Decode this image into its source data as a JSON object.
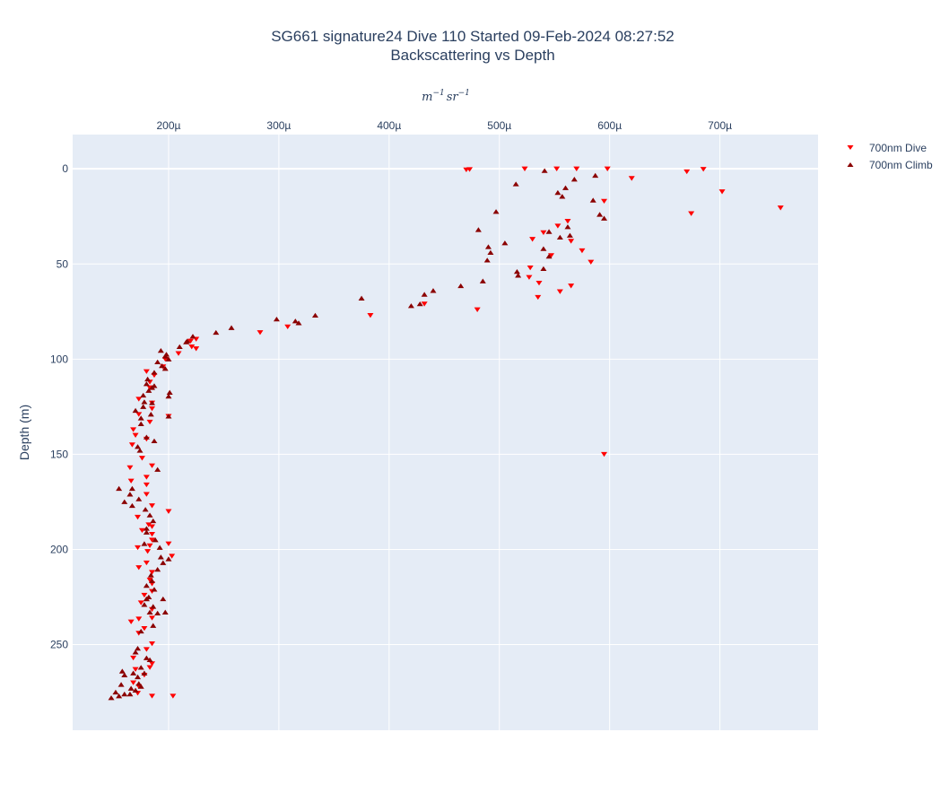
{
  "chart_data": {
    "type": "scatter",
    "title": "SG661 signature24 Dive 110 Started 09-Feb-2024 08:27:52",
    "subtitle": "Backscattering vs Depth",
    "xlabel": "m^{-1}sr^{-1}",
    "xlabel_parts": {
      "m": "m",
      "m_exp": "−1",
      "sr": "sr",
      "sr_exp": "−1"
    },
    "ylabel": "Depth (m)",
    "xaxis_side": "top",
    "yaxis_reversed": true,
    "xlim": [
      0.000113,
      0.000789
    ],
    "ylim": [
      295,
      -18
    ],
    "xticks": [
      0.0002,
      0.0003,
      0.0004,
      0.0005,
      0.0006,
      0.0007
    ],
    "xtick_labels": [
      "200µ",
      "300µ",
      "400µ",
      "500µ",
      "600µ",
      "700µ"
    ],
    "yticks": [
      0,
      50,
      100,
      150,
      200,
      250
    ],
    "ytick_labels": [
      "0",
      "50",
      "100",
      "150",
      "200",
      "250"
    ],
    "grid": true,
    "legend_position": "top-right",
    "series": [
      {
        "name": "700nm Dive",
        "marker": "triangle-down",
        "color": "#ff0000",
        "x": [
          0.00047,
          0.000473,
          0.000523,
          0.000552,
          0.00057,
          0.000598,
          0.00067,
          0.000685,
          0.00062,
          0.000702,
          0.000595,
          0.000755,
          0.000674,
          0.000562,
          0.000553,
          0.00054,
          0.00053,
          0.000565,
          0.000575,
          0.000547,
          0.000583,
          0.000528,
          0.000527,
          0.000536,
          0.000565,
          0.000555,
          0.000535,
          0.000432,
          0.00048,
          0.000383,
          0.000283,
          0.000308,
          0.000225,
          0.000221,
          0.00022,
          0.000225,
          0.000209,
          0.000197,
          0.000195,
          0.00018,
          0.000187,
          0.000183,
          0.000183,
          0.000173,
          0.000185,
          0.000185,
          0.000173,
          0.0002,
          0.000183,
          0.000168,
          0.00017,
          0.00018,
          0.000167,
          0.000176,
          0.000165,
          0.000185,
          0.00018,
          0.000166,
          0.00018,
          0.00018,
          0.000185,
          0.000172,
          0.000182,
          0.000185,
          0.000176,
          0.0002,
          0.000185,
          0.000185,
          0.000172,
          0.000181,
          0.000183,
          0.0002,
          0.000203,
          0.00018,
          0.000173,
          0.000185,
          0.000183,
          0.000185,
          0.000185,
          0.000178,
          0.000175,
          0.000185,
          0.000185,
          0.000173,
          0.000166,
          0.000178,
          0.000173,
          0.000185,
          0.00018,
          0.000168,
          0.000183,
          0.00017,
          0.000185,
          0.000178,
          0.000168,
          0.000173,
          0.000172,
          0.000185,
          0.000204,
          0.000595
        ],
        "y": [
          0.5,
          0.3,
          0.0,
          0.0,
          0.0,
          0.0,
          1.5,
          0.2,
          5.0,
          12.0,
          17.0,
          20.5,
          23.5,
          27.5,
          30.0,
          33.5,
          37.0,
          38.0,
          43.0,
          45.5,
          49.0,
          52.0,
          57.0,
          60.0,
          61.5,
          64.5,
          67.5,
          71.0,
          74.0,
          77.0,
          86.0,
          83.0,
          89.5,
          93.5,
          90.5,
          94.5,
          97.0,
          100.0,
          104.0,
          106.5,
          108.5,
          112.0,
          115.0,
          121.0,
          123.0,
          126.0,
          129.0,
          130.0,
          133.0,
          137.0,
          140.0,
          142.0,
          145.0,
          152.0,
          157.0,
          156.0,
          162.0,
          164.0,
          166.0,
          171.0,
          177.0,
          183.0,
          187.0,
          188.0,
          190.0,
          180.0,
          192.0,
          195.0,
          199.0,
          201.0,
          198.0,
          197.0,
          203.5,
          207.0,
          209.5,
          212.0,
          216.0,
          218.0,
          222.0,
          224.0,
          228.0,
          231.5,
          236.0,
          236.5,
          238.0,
          241.5,
          244.0,
          249.5,
          252.5,
          257.0,
          262.0,
          263.0,
          260.0,
          266.0,
          270.0,
          272.0,
          275.5,
          277.0,
          277.0,
          150.0
        ]
      },
      {
        "name": "700nm Climb",
        "marker": "triangle-up",
        "color": "#8b0000",
        "x": [
          0.000541,
          0.000515,
          0.000568,
          0.000587,
          0.00056,
          0.000553,
          0.000557,
          0.000585,
          0.000591,
          0.000497,
          0.000595,
          0.000562,
          0.000545,
          0.000564,
          0.000481,
          0.000555,
          0.000505,
          0.00049,
          0.000492,
          0.00054,
          0.000545,
          0.000489,
          0.000516,
          0.00054,
          0.000517,
          0.000485,
          0.000465,
          0.00044,
          0.000432,
          0.000375,
          0.00042,
          0.000428,
          0.000333,
          0.000298,
          0.000315,
          0.000318,
          0.000257,
          0.000243,
          0.000222,
          0.000217,
          0.000216,
          0.00021,
          0.000193,
          0.000198,
          0.000197,
          0.0002,
          0.00019,
          0.000194,
          0.000197,
          0.000187,
          0.000181,
          0.000201,
          0.0002,
          0.000182,
          0.000177,
          0.000185,
          0.000187,
          0.00018,
          0.0002,
          0.00017,
          0.000184,
          0.000177,
          0.000185,
          0.000178,
          0.000175,
          0.000175,
          0.000187,
          0.000172,
          0.00018,
          0.000174,
          0.00019,
          0.000167,
          0.000165,
          0.000173,
          0.000155,
          0.00016,
          0.000167,
          0.000179,
          0.000183,
          0.000186,
          0.00018,
          0.00018,
          0.000188,
          0.000178,
          0.000192,
          0.0002,
          0.000195,
          0.000193,
          0.00019,
          0.000184,
          0.000185,
          0.00018,
          0.000195,
          0.000186,
          0.000183,
          0.00019,
          0.00018,
          0.000197,
          0.000187,
          0.00018,
          0.000178,
          0.000182,
          0.000186,
          0.000175,
          0.000172,
          0.00017,
          0.00018,
          0.000183,
          0.000175,
          0.000178,
          0.000172,
          0.000173,
          0.000166,
          0.000157,
          0.000175,
          0.00017,
          0.00016,
          0.000165,
          0.000152,
          0.000148,
          0.000155,
          0.000158,
          0.00016,
          0.000168
        ],
        "y": [
          1.0,
          8.0,
          5.5,
          3.5,
          10.0,
          12.5,
          14.5,
          16.5,
          24.0,
          22.5,
          26.0,
          30.5,
          33.0,
          35.0,
          32.0,
          36.0,
          39.0,
          41.0,
          44.0,
          42.0,
          46.0,
          48.0,
          54.0,
          52.5,
          56.0,
          59.0,
          61.5,
          64.0,
          66.0,
          68.0,
          72.0,
          71.0,
          77.0,
          79.0,
          80.0,
          81.0,
          83.5,
          86.0,
          88.0,
          90.5,
          91.0,
          93.5,
          95.5,
          97.5,
          98.5,
          100.0,
          101.5,
          103.5,
          105.0,
          107.0,
          110.5,
          117.5,
          119.5,
          116.5,
          119.0,
          115.0,
          114.0,
          113.0,
          130.0,
          127.0,
          129.0,
          125.0,
          123.0,
          122.5,
          131.0,
          134.0,
          143.0,
          146.0,
          141.0,
          148.0,
          158.0,
          168.0,
          171.0,
          173.5,
          168.0,
          175.0,
          177.0,
          179.0,
          182.0,
          185.0,
          189.0,
          191.0,
          195.0,
          197.0,
          199.0,
          205.0,
          207.0,
          204.0,
          210.5,
          213.5,
          216.5,
          219.0,
          226.0,
          230.0,
          233.0,
          233.5,
          226.0,
          233.0,
          221.0,
          226.0,
          229.0,
          225.0,
          240.0,
          243.0,
          252.0,
          254.0,
          257.0,
          258.0,
          262.0,
          265.0,
          267.0,
          270.5,
          273.0,
          271.0,
          272.0,
          274.0,
          276.0,
          276.0,
          275.0,
          278.0,
          277.0,
          264.0,
          266.0,
          265.0
        ]
      }
    ]
  }
}
